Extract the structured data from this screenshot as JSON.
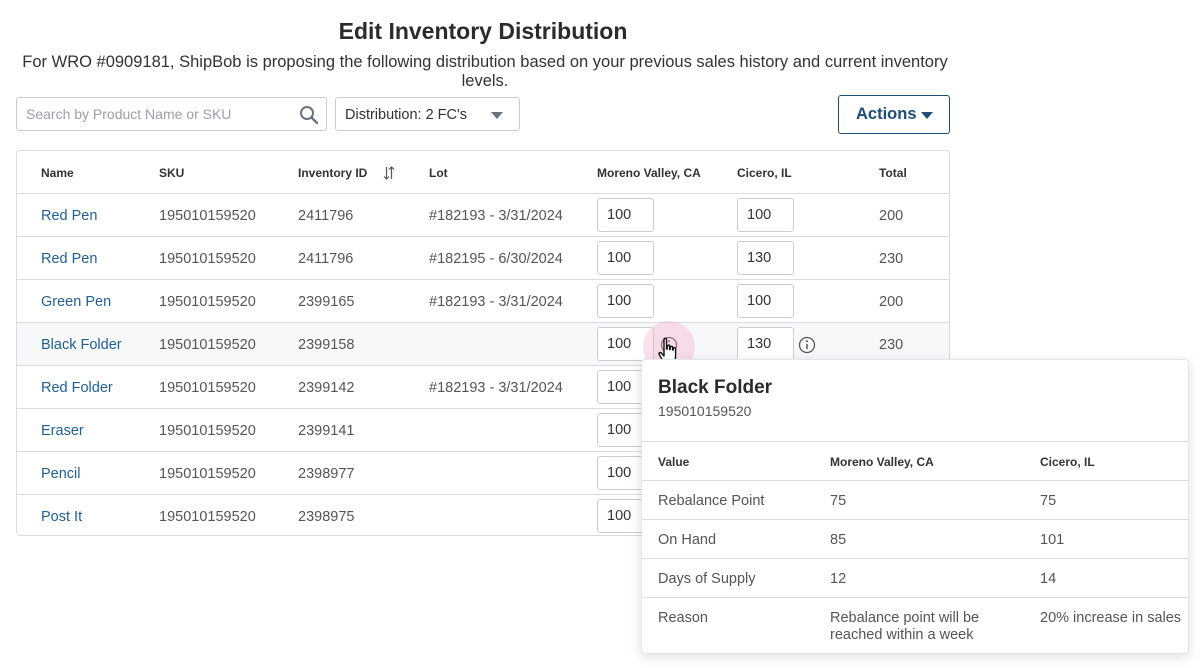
{
  "page": {
    "title": "Edit Inventory Distribution",
    "subtitle": "For WRO #0909181, ShipBob is proposing the following distribution based on your previous sales history and current inventory levels."
  },
  "toolbar": {
    "search_placeholder": "Search by Product Name or SKU",
    "distribution_label": "Distribution: 2 FC's",
    "actions_label": "Actions"
  },
  "table": {
    "columns": {
      "name": "Name",
      "sku": "SKU",
      "inventory_id": "Inventory ID",
      "lot": "Lot",
      "fc1": "Moreno Valley, CA",
      "fc2": "Cicero, IL",
      "total": "Total"
    },
    "rows": [
      {
        "name": "Red Pen",
        "sku": "195010159520",
        "inventory_id": "2411796",
        "lot": "#182193 - 3/31/2024",
        "fc1": "100",
        "fc2": "100",
        "total": "200"
      },
      {
        "name": "Red Pen",
        "sku": "195010159520",
        "inventory_id": "2411796",
        "lot": "#182195 - 6/30/2024",
        "fc1": "100",
        "fc2": "130",
        "total": "230"
      },
      {
        "name": "Green Pen",
        "sku": "195010159520",
        "inventory_id": "2399165",
        "lot": "#182193 - 3/31/2024",
        "fc1": "100",
        "fc2": "100",
        "total": "200"
      },
      {
        "name": "Black Folder",
        "sku": "195010159520",
        "inventory_id": "2399158",
        "lot": "",
        "fc1": "100",
        "fc2": "130",
        "total": "230"
      },
      {
        "name": "Red Folder",
        "sku": "195010159520",
        "inventory_id": "2399142",
        "lot": "#182193 - 3/31/2024",
        "fc1": "100",
        "fc2": "",
        "total": ""
      },
      {
        "name": "Eraser",
        "sku": "195010159520",
        "inventory_id": "2399141",
        "lot": "",
        "fc1": "100",
        "fc2": "",
        "total": ""
      },
      {
        "name": "Pencil",
        "sku": "195010159520",
        "inventory_id": "2398977",
        "lot": "",
        "fc1": "100",
        "fc2": "",
        "total": ""
      },
      {
        "name": "Post It",
        "sku": "195010159520",
        "inventory_id": "2398975",
        "lot": "",
        "fc1": "100",
        "fc2": "",
        "total": ""
      }
    ]
  },
  "popover": {
    "title": "Black Folder",
    "sku": "195010159520",
    "headers": {
      "value": "Value",
      "fc1": "Moreno Valley, CA",
      "fc2": "Cicero, IL"
    },
    "rows": [
      {
        "label": "Rebalance Point",
        "fc1": "75",
        "fc2": "75"
      },
      {
        "label": "On Hand",
        "fc1": "85",
        "fc2": "101"
      },
      {
        "label": "Days of Supply",
        "fc1": "12",
        "fc2": "14"
      },
      {
        "label": "Reason",
        "fc1": "Rebalance point will be reached within a week",
        "fc2": "20% increase in sales"
      }
    ]
  },
  "icons": {
    "search": "search-icon",
    "dropdown": "chevron-down-icon",
    "sort": "sort-icon",
    "info": "info-icon",
    "cursor": "hand-pointer-icon"
  },
  "colors": {
    "link": "#1f5f96",
    "accent": "#1f4e79",
    "border": "#d9dde2",
    "cursor_halo": "#f4aac8"
  }
}
